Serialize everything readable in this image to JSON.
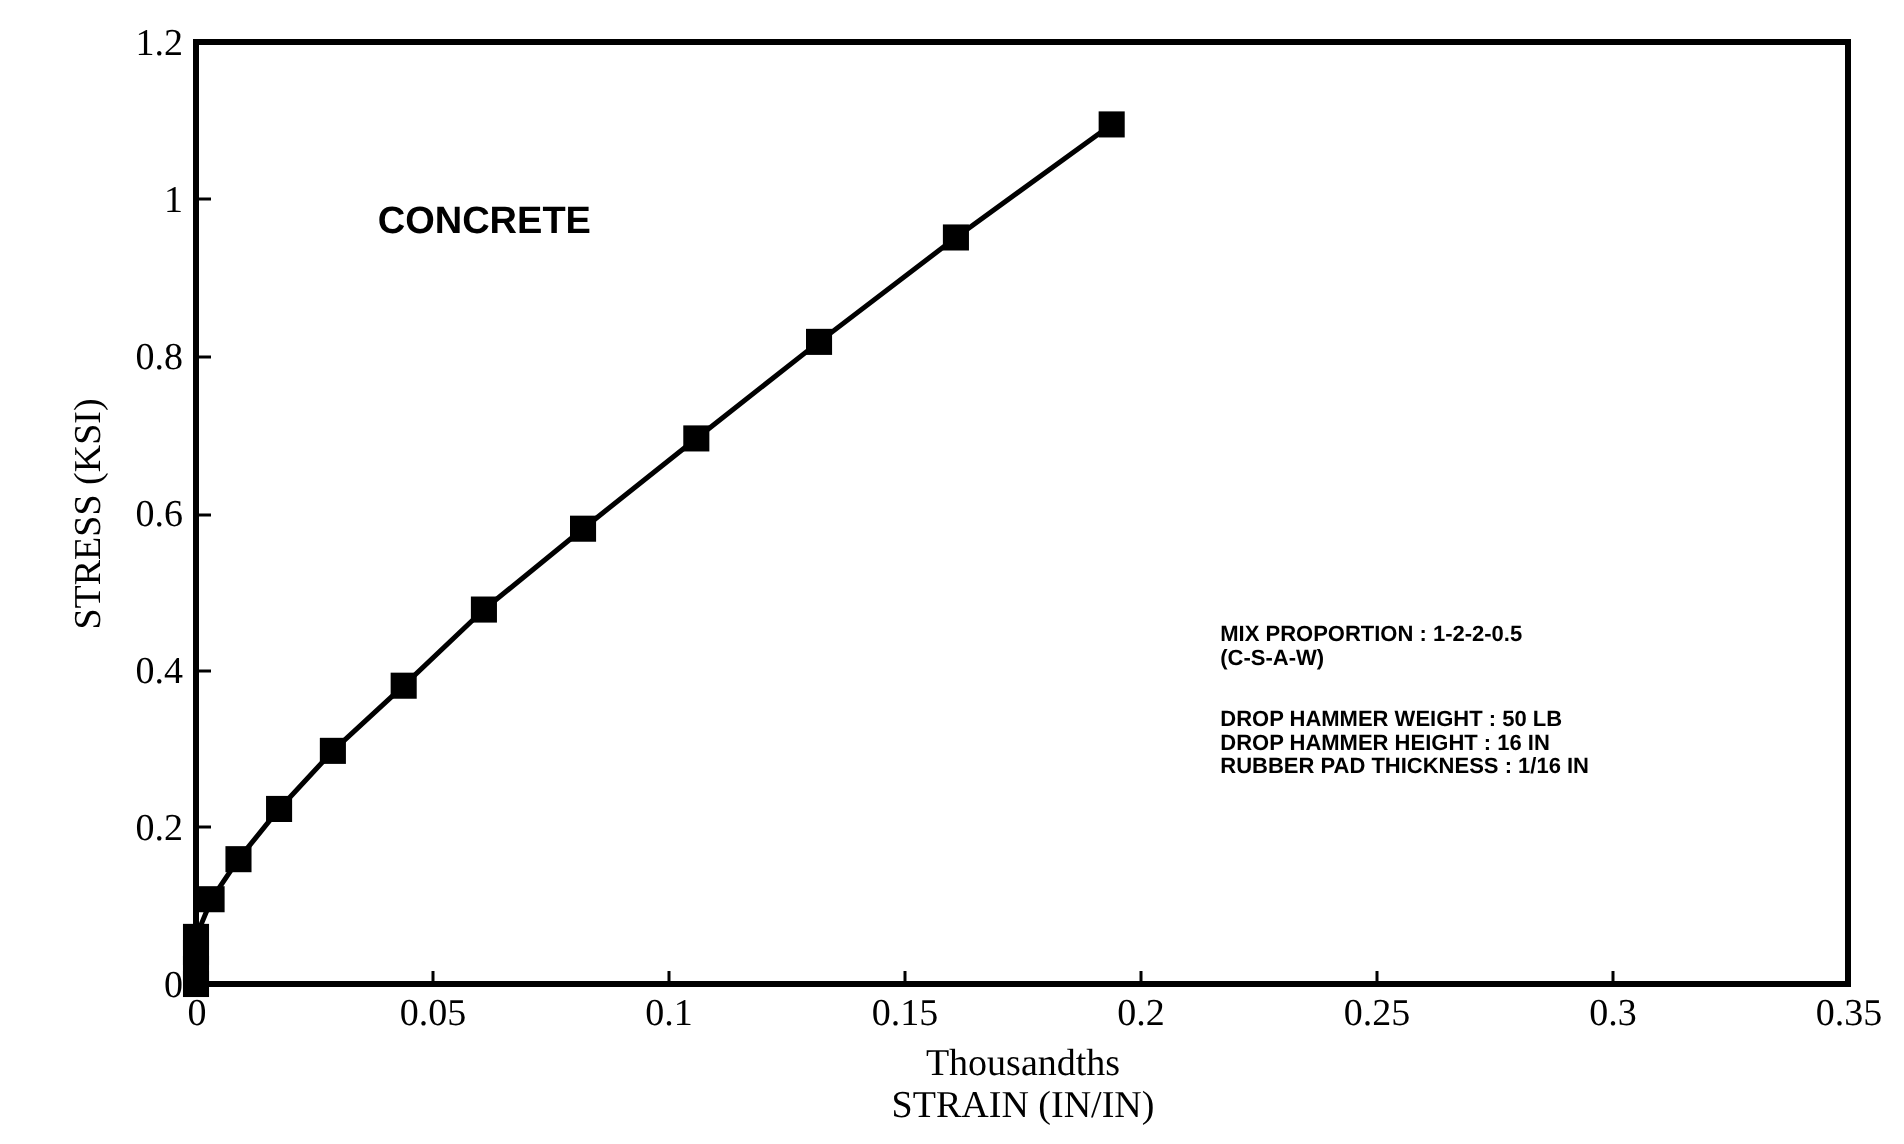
{
  "chart_data": {
    "type": "line",
    "xlabel": "Thousandths\nSTRAIN (IN/IN)",
    "ylabel": "STRESS (KSI)",
    "x": [
      0,
      0,
      0,
      0,
      0.0033,
      0.009,
      0.0176,
      0.029,
      0.044,
      0.061,
      0.082,
      0.106,
      0.132,
      0.161,
      0.194
    ],
    "series": [
      {
        "color": "#000000",
        "values": [
          0,
          0.02,
          0.04,
          0.06,
          0.108,
          0.159,
          0.223,
          0.297,
          0.38,
          0.477,
          0.58,
          0.695,
          0.818,
          0.951,
          1.095
        ]
      }
    ],
    "xlim": [
      0,
      0.35
    ],
    "xticks": [
      0,
      0.05,
      0.1,
      0.15,
      0.2,
      0.25,
      0.3,
      0.35
    ],
    "ylim": [
      0,
      1.2
    ],
    "yticks": [
      0,
      0.2,
      0.4,
      0.6,
      0.8,
      1,
      1.2
    ],
    "marker": "square",
    "line_style": "solid",
    "grid": false,
    "annotations": [
      "CONCRETE",
      "MIX PROPORTION          : 1-2-2-0.5",
      "(C-S-A-W)",
      "DROP HAMMER WEIGHT  : 50 LB",
      "DROP HAMMER HEIGHT   : 16 IN",
      "RUBBER PAD THICKNESS : 1/16 IN"
    ]
  }
}
